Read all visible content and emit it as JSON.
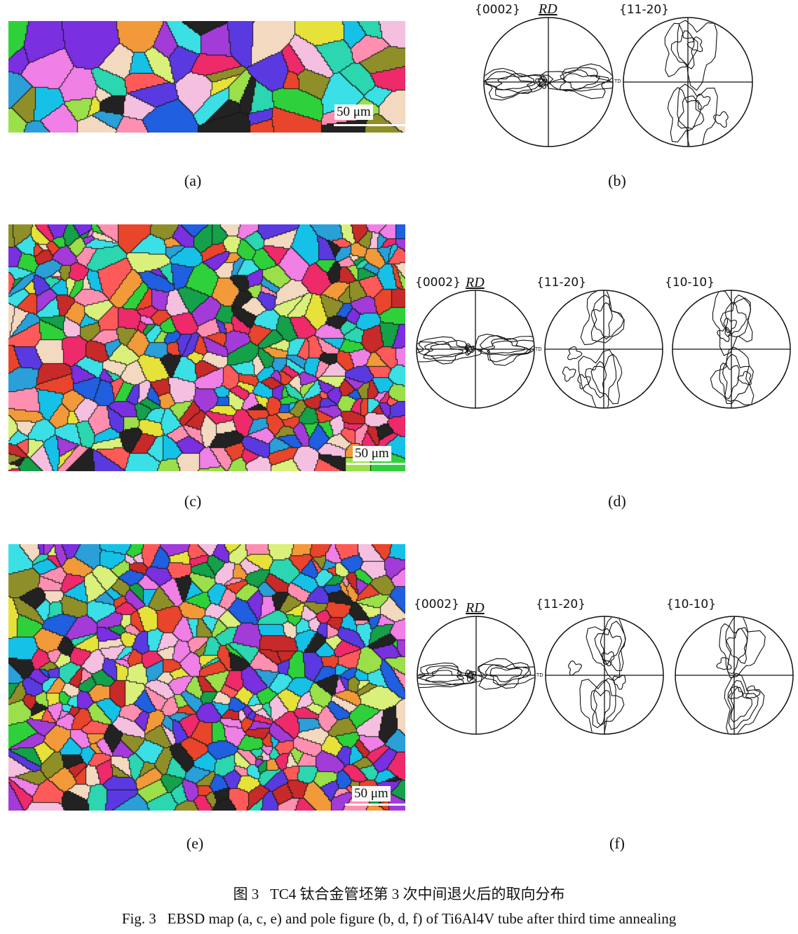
{
  "panels": {
    "a": {
      "label": "(a)",
      "scale_bar": "50 μm"
    },
    "b": {
      "label": "(b)",
      "pole_figures": [
        "{0002}",
        "{11-20}"
      ],
      "rd": "RD",
      "td": "TD"
    },
    "c": {
      "label": "(c)",
      "scale_bar": "50 μm"
    },
    "d": {
      "label": "(d)",
      "pole_figures": [
        "{0002}",
        "{11-20}",
        "{10-10}"
      ],
      "rd": "RD",
      "td": "TD"
    },
    "e": {
      "label": "(e)",
      "scale_bar": "50 μm"
    },
    "f": {
      "label": "(f)",
      "pole_figures": [
        "{0002}",
        "{11-20}",
        "{10-10}"
      ],
      "rd": "RD",
      "td": "TD"
    }
  },
  "caption": {
    "zh": "图 3   TC4 钛合金管坯第 3 次中间退火后的取向分布",
    "en": "Fig. 3   EBSD map (a, c, e) and pole figure (b, d, f) of Ti6Al4V tube after third time annealing"
  }
}
